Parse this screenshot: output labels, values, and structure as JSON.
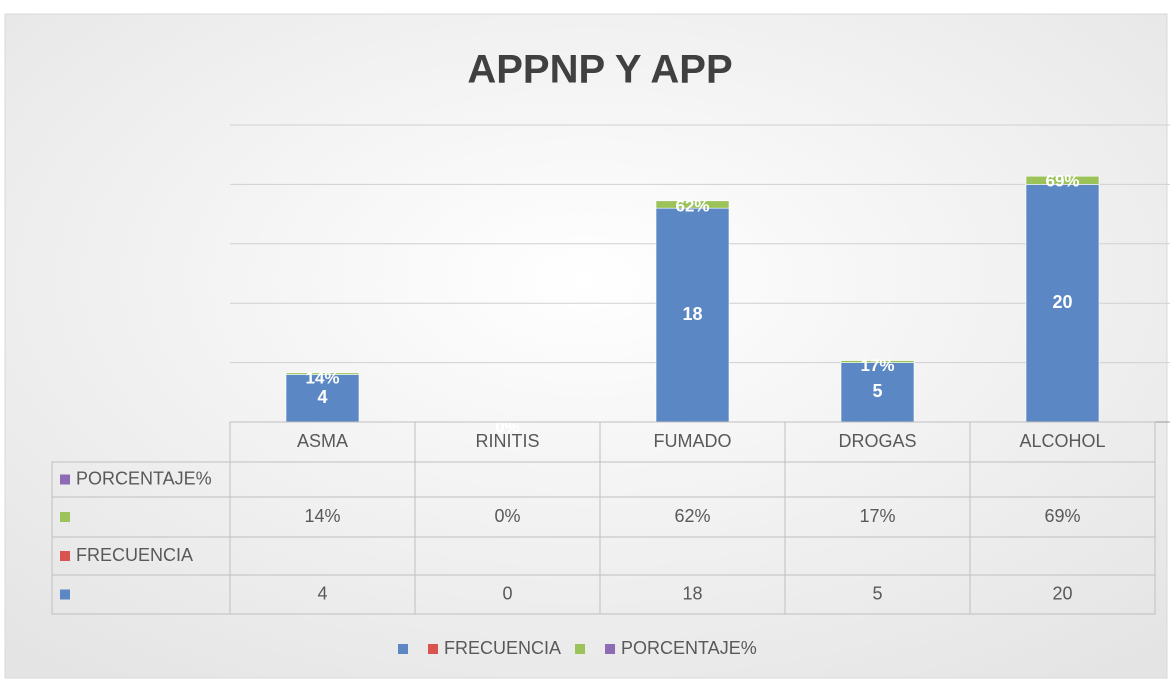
{
  "chart_data": {
    "type": "bar",
    "stacked": true,
    "title": "APPNP Y APP",
    "categories": [
      "ASMA",
      "RINITIS",
      "FUMADO",
      "DROGAS",
      "ALCOHOL"
    ],
    "series": [
      {
        "name": null,
        "color": "#5b87c5",
        "values": [
          4,
          0,
          18,
          5,
          20
        ]
      },
      {
        "name": "FRECUENCIA",
        "color": "#d9534f",
        "values": [
          null,
          null,
          null,
          null,
          null
        ]
      },
      {
        "name": null,
        "color": "#9bc35a",
        "values": [
          0.14,
          0,
          0.62,
          0.17,
          0.69
        ],
        "value_labels": [
          "14%",
          "0%",
          "62%",
          "17%",
          "69%"
        ]
      },
      {
        "name": "PORCENTAJE%",
        "color": "#8e6bb5",
        "values": [
          null,
          null,
          null,
          null,
          null
        ]
      }
    ],
    "ylim": [
      0,
      25
    ],
    "yticks": [
      0,
      5,
      10,
      15,
      20,
      25
    ],
    "grid": true,
    "data_table": true,
    "legend": "bottom"
  }
}
